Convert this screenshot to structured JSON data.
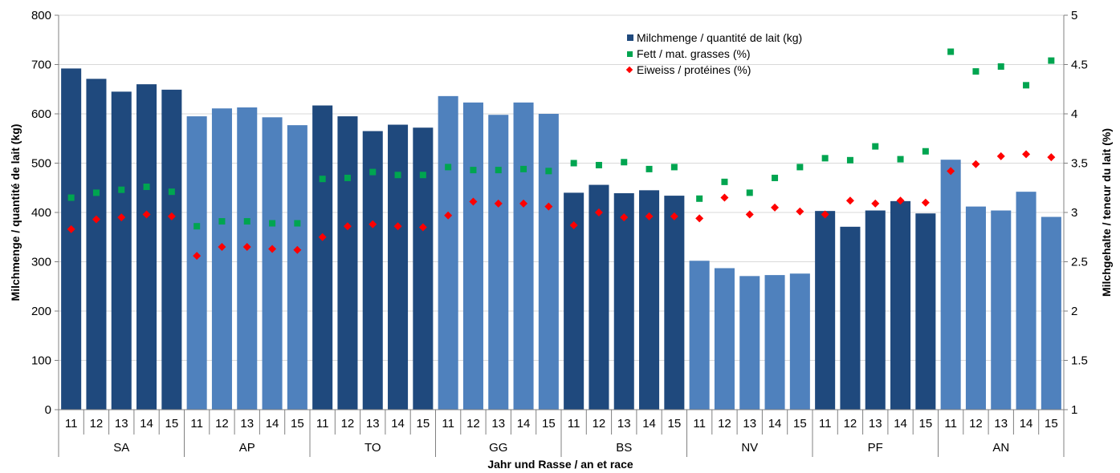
{
  "chart_data": {
    "type": "bar",
    "xlabel": "Jahr und Rasse / an et race",
    "ylabel": "Milchmenge / quantité de lait (kg)",
    "y2label": "Milchgehalte / teneur du lait (%)",
    "ylim": [
      0,
      800
    ],
    "y2lim": [
      1,
      5
    ],
    "yticks": [
      "0",
      "100",
      "200",
      "300",
      "400",
      "500",
      "600",
      "700",
      "800"
    ],
    "y2ticks": [
      "1",
      "1.5",
      "2",
      "2.5",
      "3",
      "3.5",
      "4",
      "4.5",
      "5"
    ],
    "years": [
      "11",
      "12",
      "13",
      "14",
      "15"
    ],
    "groups": [
      "SA",
      "AP",
      "TO",
      "GG",
      "BS",
      "NV",
      "PF",
      "AN"
    ],
    "legend_position": "top-center",
    "colors": {
      "bar_dark": "#1f497d",
      "bar_light": "#4f81bd",
      "fett": "#00a550",
      "eiweiss": "#ff0000",
      "axis": "#808080"
    },
    "series": [
      {
        "name": "Milchmenge / quantité de lait (kg)",
        "axis": "left",
        "marker": "bar",
        "values": [
          692,
          671,
          645,
          660,
          649,
          595,
          611,
          613,
          593,
          577,
          617,
          595,
          565,
          578,
          572,
          636,
          623,
          598,
          623,
          600,
          440,
          456,
          439,
          445,
          434,
          302,
          287,
          271,
          273,
          276,
          403,
          371,
          404,
          423,
          398,
          507,
          412,
          404,
          442,
          391
        ]
      },
      {
        "name": "Fett / mat. grasses (%)",
        "axis": "right",
        "marker": "square",
        "values": [
          3.15,
          3.2,
          3.23,
          3.26,
          3.21,
          2.86,
          2.91,
          2.91,
          2.89,
          2.89,
          3.34,
          3.35,
          3.41,
          3.38,
          3.38,
          3.46,
          3.43,
          3.43,
          3.44,
          3.42,
          3.5,
          3.48,
          3.51,
          3.44,
          3.46,
          3.14,
          3.31,
          3.2,
          3.35,
          3.46,
          3.55,
          3.53,
          3.67,
          3.54,
          3.62,
          4.63,
          4.43,
          4.48,
          4.29,
          4.54
        ]
      },
      {
        "name": "Eiweiss / protéines (%)",
        "axis": "right",
        "marker": "diamond",
        "values": [
          2.83,
          2.93,
          2.95,
          2.98,
          2.96,
          2.56,
          2.65,
          2.65,
          2.63,
          2.62,
          2.75,
          2.86,
          2.88,
          2.86,
          2.85,
          2.97,
          3.11,
          3.09,
          3.09,
          3.06,
          2.87,
          3.0,
          2.95,
          2.96,
          2.96,
          2.94,
          3.15,
          2.98,
          3.05,
          3.01,
          2.98,
          3.12,
          3.09,
          3.12,
          3.1,
          3.42,
          3.49,
          3.57,
          3.59,
          3.56
        ]
      }
    ]
  }
}
